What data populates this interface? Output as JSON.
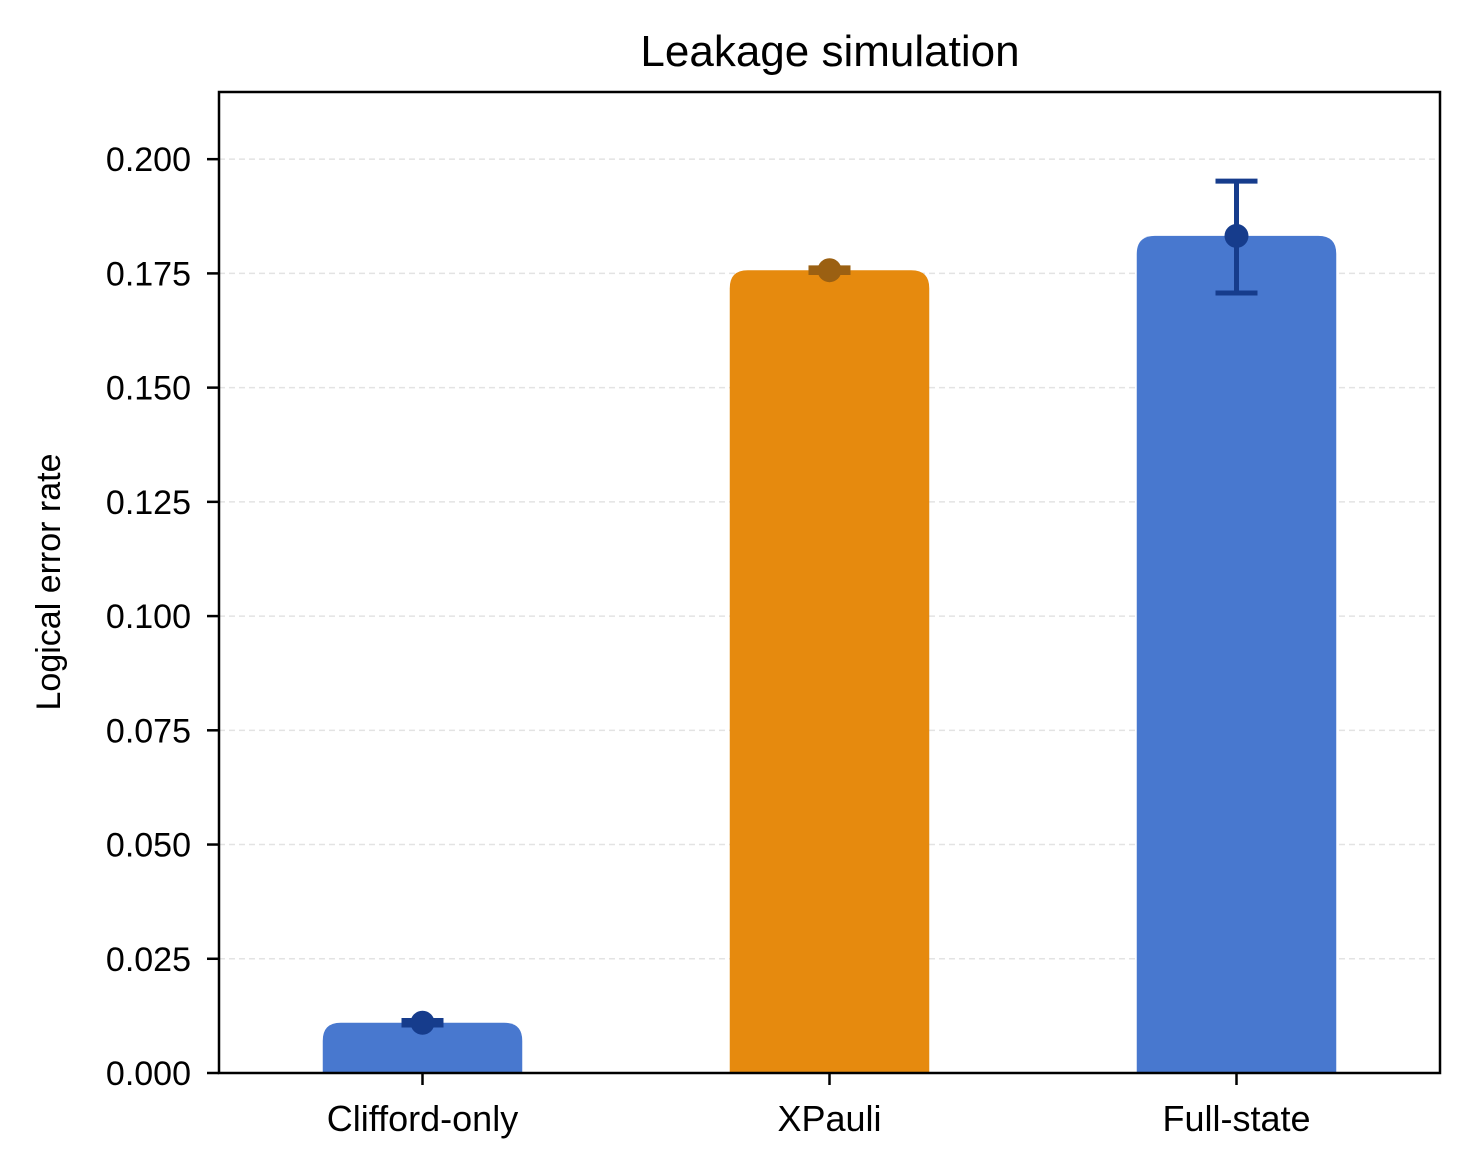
{
  "chart_data": {
    "type": "bar",
    "title": "Leakage simulation",
    "xlabel": "",
    "ylabel": "Logical error rate",
    "categories": [
      "Clifford-only",
      "XPauli",
      "Full-state"
    ],
    "values": [
      0.011,
      0.1757,
      0.1832
    ],
    "error_low": [
      0.0105,
      0.1752,
      0.1707
    ],
    "error_high": [
      0.0115,
      0.1762,
      0.1952
    ],
    "bar_colors": [
      "#4878cf",
      "#e68a0e",
      "#4878cf"
    ],
    "marker_colors": [
      "#163c8c",
      "#9b6012",
      "#163c8c"
    ],
    "ylim": [
      0,
      0.2147
    ],
    "xlim": [
      -0.5,
      2.5
    ],
    "yticks": [
      0,
      0.025,
      0.05,
      0.075,
      0.1,
      0.125,
      0.15,
      0.175,
      0.2
    ],
    "ytick_labels": [
      "0.000",
      "0.025",
      "0.050",
      "0.075",
      "0.100",
      "0.125",
      "0.150",
      "0.175",
      "0.200"
    ],
    "grid": "y-dashed"
  }
}
